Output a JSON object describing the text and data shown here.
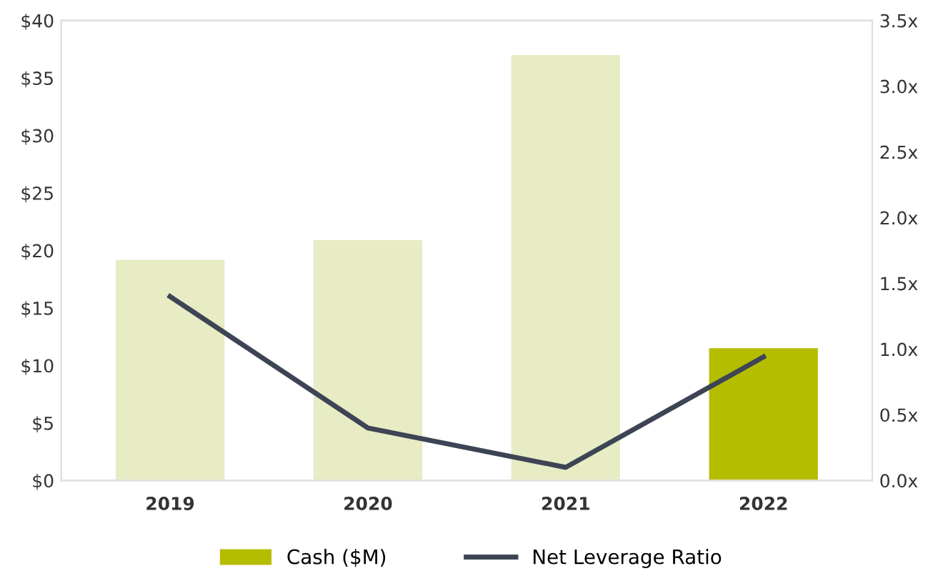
{
  "chart_data": {
    "type": "bar",
    "categories": [
      "2019",
      "2020",
      "2021",
      "2022"
    ],
    "series": [
      {
        "name": "Cash ($M)",
        "color": "#b5bd00",
        "colors": [
          "#e8ecc4",
          "#e8ecc4",
          "#e8ecc4",
          "#b5bd00"
        ],
        "values": [
          19.2,
          20.9,
          37.0,
          11.5
        ]
      },
      {
        "name": "Net Leverage Ratio",
        "type": "line",
        "axis": "y2",
        "color": "#3d4555",
        "values": [
          1.4,
          0.4,
          0.1,
          0.94
        ]
      }
    ],
    "ylim": [
      0,
      40
    ],
    "yticks": [
      {
        "value": 0,
        "label": "$0"
      },
      {
        "value": 5,
        "label": "$5"
      },
      {
        "value": 10,
        "label": "$10"
      },
      {
        "value": 15,
        "label": "$15"
      },
      {
        "value": 20,
        "label": "$20"
      },
      {
        "value": 25,
        "label": "$25"
      },
      {
        "value": 30,
        "label": "$30"
      },
      {
        "value": 35,
        "label": "$35"
      },
      {
        "value": 40,
        "label": "$40"
      }
    ],
    "y2lim": [
      0,
      3.5
    ],
    "y2ticks": [
      {
        "value": 0,
        "label": "0.0x"
      },
      {
        "value": 0.5,
        "label": "0.5x"
      },
      {
        "value": 1,
        "label": "1.0x"
      },
      {
        "value": 1.5,
        "label": "1.5x"
      },
      {
        "value": 2,
        "label": "2.0x"
      },
      {
        "value": 2.5,
        "label": "2.5x"
      },
      {
        "value": 3,
        "label": "3.0x"
      },
      {
        "value": 3.5,
        "label": "3.5x"
      }
    ],
    "grid": false,
    "legend": "bottom",
    "marker": "none",
    "line_style": "solid"
  }
}
